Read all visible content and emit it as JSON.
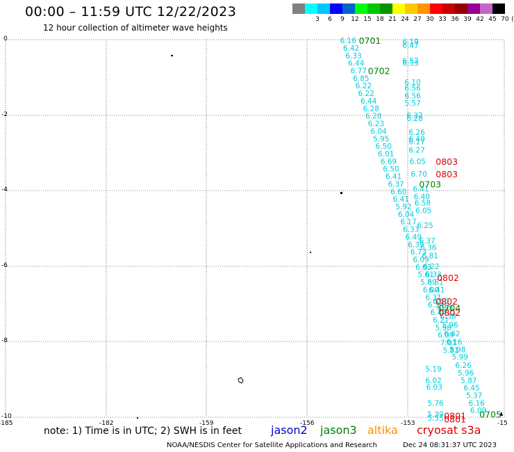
{
  "header": {
    "title": "00:00 – 11:59 UTC 12/22/2023",
    "subtitle": "12 hour collection of altimeter wave heights"
  },
  "color_scale": {
    "unit": "(ft)",
    "items": [
      {
        "label": "",
        "color": "#808080"
      },
      {
        "label": "3",
        "color": "#00ffff"
      },
      {
        "label": "6",
        "color": "#00c8ff"
      },
      {
        "label": "9",
        "color": "#0000ff"
      },
      {
        "label": "12",
        "color": "#0064c8"
      },
      {
        "label": "15",
        "color": "#00ff00"
      },
      {
        "label": "18",
        "color": "#00c800"
      },
      {
        "label": "21",
        "color": "#009600"
      },
      {
        "label": "24",
        "color": "#ffff00"
      },
      {
        "label": "27",
        "color": "#ffc800"
      },
      {
        "label": "30",
        "color": "#ff9600"
      },
      {
        "label": "33",
        "color": "#ff0000"
      },
      {
        "label": "36",
        "color": "#c80000"
      },
      {
        "label": "39",
        "color": "#960000"
      },
      {
        "label": "42",
        "color": "#960096"
      },
      {
        "label": "45",
        "color": "#c864c8"
      },
      {
        "label": "70",
        "color": "#000000"
      }
    ]
  },
  "map": {
    "lon_ticks": [
      "-185",
      "-182",
      "-159",
      "-156",
      "-153",
      "-15"
    ],
    "lat_ticks": [
      "0",
      "-2",
      "-4",
      "-6",
      "-8",
      "-10"
    ],
    "lon_range": [
      -162,
      -150
    ],
    "lat_range": [
      -10,
      0
    ],
    "gridline_style": "dotted"
  },
  "colors": {
    "wave_label": "#00ccdd",
    "jason3": "#008000",
    "jason2": "#0000cc",
    "altika": "#ff8c00",
    "cryosat": "#dd0000"
  },
  "tracks": [
    {
      "name": "left",
      "points": [
        {
          "lon": -153.95,
          "lat": -0.02,
          "v": "6.16"
        },
        {
          "lon": -153.88,
          "lat": -0.22,
          "v": "6.42"
        },
        {
          "lon": -153.82,
          "lat": -0.42,
          "v": "6.33"
        },
        {
          "lon": -153.76,
          "lat": -0.62,
          "v": "6.44"
        },
        {
          "lon": -153.7,
          "lat": -0.82,
          "v": "6.77"
        },
        {
          "lon": -153.64,
          "lat": -1.02,
          "v": "6.85"
        },
        {
          "lon": -153.58,
          "lat": -1.22,
          "v": "6.22"
        },
        {
          "lon": -153.52,
          "lat": -1.42,
          "v": "6.22"
        },
        {
          "lon": -153.46,
          "lat": -1.62,
          "v": "6.44"
        },
        {
          "lon": -153.4,
          "lat": -1.82,
          "v": "6.28"
        },
        {
          "lon": -153.34,
          "lat": -2.02,
          "v": "6.28"
        },
        {
          "lon": -153.28,
          "lat": -2.22,
          "v": "6.23"
        },
        {
          "lon": -153.22,
          "lat": -2.42,
          "v": "6.04"
        },
        {
          "lon": -153.16,
          "lat": -2.62,
          "v": "5.95"
        },
        {
          "lon": -153.1,
          "lat": -2.82,
          "v": "6.50"
        },
        {
          "lon": -153.04,
          "lat": -3.02,
          "v": "6.01"
        },
        {
          "lon": -152.98,
          "lat": -3.22,
          "v": "6.69"
        },
        {
          "lon": -152.92,
          "lat": -3.42,
          "v": "6.50"
        },
        {
          "lon": -152.86,
          "lat": -3.62,
          "v": "6.41"
        },
        {
          "lon": -152.8,
          "lat": -3.82,
          "v": "6.37"
        },
        {
          "lon": -152.74,
          "lat": -4.02,
          "v": "6.60"
        },
        {
          "lon": -152.68,
          "lat": -4.22,
          "v": "6.41"
        },
        {
          "lon": -152.62,
          "lat": -4.42,
          "v": "5.92"
        },
        {
          "lon": -152.56,
          "lat": -4.62,
          "v": "6.04"
        },
        {
          "lon": -152.5,
          "lat": -4.82,
          "v": "6.17"
        },
        {
          "lon": -152.44,
          "lat": -5.02,
          "v": "6.33"
        },
        {
          "lon": -152.38,
          "lat": -5.22,
          "v": "6.49"
        },
        {
          "lon": -152.32,
          "lat": -5.42,
          "v": "6.39"
        },
        {
          "lon": -152.26,
          "lat": -5.62,
          "v": "6.73"
        },
        {
          "lon": -152.2,
          "lat": -5.82,
          "v": "6.09"
        },
        {
          "lon": -152.14,
          "lat": -6.02,
          "v": "6.03"
        },
        {
          "lon": -152.08,
          "lat": -6.22,
          "v": "5.61"
        },
        {
          "lon": -152.02,
          "lat": -6.42,
          "v": "5.89"
        },
        {
          "lon": -151.96,
          "lat": -6.62,
          "v": "6.00"
        },
        {
          "lon": -151.9,
          "lat": -6.82,
          "v": "6.31"
        },
        {
          "lon": -151.84,
          "lat": -7.02,
          "v": "6.34"
        },
        {
          "lon": -151.78,
          "lat": -7.22,
          "v": "6.44"
        },
        {
          "lon": -151.72,
          "lat": -7.42,
          "v": "6.21"
        },
        {
          "lon": -151.66,
          "lat": -7.62,
          "v": "5.98"
        },
        {
          "lon": -151.6,
          "lat": -7.82,
          "v": "6.09"
        },
        {
          "lon": -151.54,
          "lat": -8.02,
          "v": "7.01"
        },
        {
          "lon": -151.48,
          "lat": -8.22,
          "v": "5.81"
        }
      ]
    },
    {
      "name": "right",
      "points": [
        {
          "lon": -152.45,
          "lat": -0.05,
          "v": "6.19"
        },
        {
          "lon": -152.45,
          "lat": -0.15,
          "v": "6.47"
        },
        {
          "lon": -152.45,
          "lat": -0.55,
          "v": "6.52"
        },
        {
          "lon": -152.45,
          "lat": -0.62,
          "v": "6.33"
        },
        {
          "lon": -152.4,
          "lat": -1.12,
          "v": "6.10"
        },
        {
          "lon": -152.4,
          "lat": -1.28,
          "v": "6.56"
        },
        {
          "lon": -152.4,
          "lat": -1.48,
          "v": "6.56"
        },
        {
          "lon": -152.4,
          "lat": -1.68,
          "v": "5.57"
        },
        {
          "lon": -152.35,
          "lat": -2.0,
          "v": "6.32"
        },
        {
          "lon": -152.35,
          "lat": -2.08,
          "v": "6.28"
        },
        {
          "lon": -152.3,
          "lat": -2.45,
          "v": "6.26"
        },
        {
          "lon": -152.3,
          "lat": -2.62,
          "v": "6.40"
        },
        {
          "lon": -152.3,
          "lat": -2.7,
          "v": "6.17"
        },
        {
          "lon": -152.3,
          "lat": -2.92,
          "v": "6.27"
        },
        {
          "lon": -152.28,
          "lat": -3.22,
          "v": "6.05"
        },
        {
          "lon": -152.25,
          "lat": -3.55,
          "v": "6.70"
        },
        {
          "lon": -152.2,
          "lat": -3.95,
          "v": "6.41"
        },
        {
          "lon": -152.18,
          "lat": -4.15,
          "v": "6.40"
        },
        {
          "lon": -152.16,
          "lat": -4.32,
          "v": "6.58"
        },
        {
          "lon": -152.14,
          "lat": -4.52,
          "v": "6.05"
        },
        {
          "lon": -152.1,
          "lat": -4.92,
          "v": "6.25"
        },
        {
          "lon": -152.05,
          "lat": -5.32,
          "v": "6.37"
        },
        {
          "lon": -152.02,
          "lat": -5.5,
          "v": "6.36"
        },
        {
          "lon": -151.98,
          "lat": -5.72,
          "v": "6.81"
        },
        {
          "lon": -151.95,
          "lat": -6.0,
          "v": "6.22"
        },
        {
          "lon": -151.9,
          "lat": -6.22,
          "v": "6.33"
        },
        {
          "lon": -151.85,
          "lat": -6.42,
          "v": "6.51"
        },
        {
          "lon": -151.82,
          "lat": -6.62,
          "v": "6.41"
        },
        {
          "lon": -151.72,
          "lat": -6.92,
          "v": "6.50"
        },
        {
          "lon": -151.62,
          "lat": -7.1,
          "v": "6.68"
        },
        {
          "lon": -151.55,
          "lat": -7.32,
          "v": "6.38"
        },
        {
          "lon": -151.5,
          "lat": -7.55,
          "v": "5.96"
        },
        {
          "lon": -151.45,
          "lat": -7.78,
          "v": "6.62"
        },
        {
          "lon": -151.4,
          "lat": -8.0,
          "v": "6.16"
        },
        {
          "lon": -151.32,
          "lat": -8.2,
          "v": "5.98"
        },
        {
          "lon": -151.26,
          "lat": -8.4,
          "v": "5.99"
        },
        {
          "lon": -151.18,
          "lat": -8.62,
          "v": "6.26"
        },
        {
          "lon": -151.12,
          "lat": -8.82,
          "v": "5.96"
        },
        {
          "lon": -151.05,
          "lat": -9.02,
          "v": "5.87"
        },
        {
          "lon": -150.98,
          "lat": -9.22,
          "v": "6.45"
        },
        {
          "lon": -150.92,
          "lat": -9.42,
          "v": "5.37"
        },
        {
          "lon": -150.86,
          "lat": -9.62,
          "v": "6.16"
        },
        {
          "lon": -150.82,
          "lat": -9.82,
          "v": "6.09"
        }
      ]
    },
    {
      "name": "lower",
      "points": [
        {
          "lon": -151.9,
          "lat": -8.72,
          "v": "5.19"
        },
        {
          "lon": -151.9,
          "lat": -9.02,
          "v": "6.02"
        },
        {
          "lon": -151.88,
          "lat": -9.2,
          "v": "6.03"
        },
        {
          "lon": -151.85,
          "lat": -9.62,
          "v": "5.76"
        },
        {
          "lon": -151.85,
          "lat": -9.92,
          "v": "5.39"
        },
        {
          "lon": -151.85,
          "lat": -10.02,
          "v": "5.55"
        }
      ]
    }
  ],
  "pass_labels": [
    {
      "lon": -153.5,
      "lat": -0.02,
      "t": "0701",
      "sat": "jason3"
    },
    {
      "lon": -153.28,
      "lat": -0.82,
      "t": "0702",
      "sat": "jason3"
    },
    {
      "lon": -152.05,
      "lat": -3.82,
      "t": "0703",
      "sat": "jason3"
    },
    {
      "lon": -151.58,
      "lat": -7.1,
      "t": "0704",
      "sat": "jason3"
    },
    {
      "lon": -150.6,
      "lat": -9.92,
      "t": "0705",
      "sat": "jason3"
    },
    {
      "lon": -151.65,
      "lat": -3.22,
      "t": "0803",
      "sat": "cryosat"
    },
    {
      "lon": -151.65,
      "lat": -3.55,
      "t": "0803",
      "sat": "cryosat"
    },
    {
      "lon": -151.62,
      "lat": -6.3,
      "t": "0802",
      "sat": "cryosat"
    },
    {
      "lon": -151.65,
      "lat": -6.92,
      "t": "0802",
      "sat": "cryosat"
    },
    {
      "lon": -151.58,
      "lat": -7.22,
      "t": "0802",
      "sat": "cryosat"
    },
    {
      "lon": -151.45,
      "lat": -9.95,
      "t": "0801",
      "sat": "cryosat"
    },
    {
      "lon": -151.45,
      "lat": -10.05,
      "t": "0801",
      "sat": "cryosat"
    }
  ],
  "note": "note:  1) Time is in UTC;  2) SWH is in feet",
  "satellites": {
    "jason2": "jason2",
    "jason3": "jason3",
    "altika": "altika",
    "cryosat": "cryosat s3a"
  },
  "footer": {
    "org": "NOAA/NESDIS Center for Satellite Applications and Research",
    "timestamp": "Dec 24 08:31:37 UTC 2023"
  }
}
